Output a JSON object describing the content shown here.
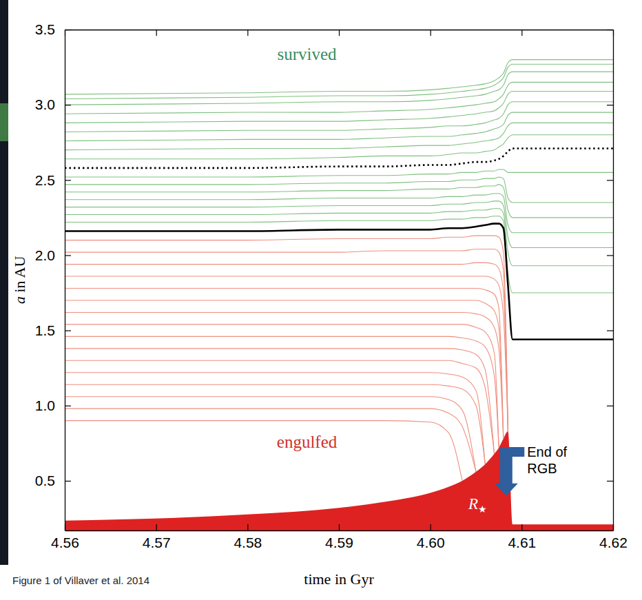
{
  "chart_data": {
    "type": "line",
    "x_label": "time in Gyr",
    "y_label": "a in AU",
    "caption": "Figure 1 of Villaver et al. 2014",
    "xlim": [
      4.56,
      4.62
    ],
    "ylim": [
      0.17,
      3.5
    ],
    "xticks": [
      4.56,
      4.57,
      4.58,
      4.59,
      {
        "value": 4.6,
        "label": "4.60"
      },
      4.61,
      4.62
    ],
    "yticks": [
      0.5,
      {
        "value": 1,
        "label": "1.0"
      },
      1.5,
      {
        "value": 2,
        "label": "2.0"
      },
      2.5,
      {
        "value": 3,
        "label": "3.0"
      },
      3.5
    ],
    "x": [
      4.56,
      4.58,
      4.59,
      4.595,
      4.6,
      4.602,
      4.6035,
      4.605,
      4.606,
      4.607,
      4.6075,
      4.608,
      4.6085,
      4.609,
      4.62
    ],
    "series": [
      {
        "type": "area",
        "color": "#de2222",
        "values": [
          0.235,
          0.276,
          0.32,
          0.36,
          0.42,
          0.46,
          0.5,
          0.56,
          0.61,
          0.68,
          0.72,
          0.78,
          0.83,
          0.21,
          0.21
        ]
      },
      {
        "color": "#ee8f7f",
        "values": [
          0.9,
          0.9,
          0.9,
          0.9,
          0.89,
          0.82,
          0.5,
          null,
          null,
          null,
          null,
          null,
          null,
          null,
          null
        ]
      },
      {
        "color": "#ee8f7f",
        "values": [
          0.98,
          0.98,
          0.98,
          0.98,
          0.98,
          0.95,
          0.86,
          0.56,
          null,
          null,
          null,
          null,
          null,
          null,
          null
        ]
      },
      {
        "color": "#ee8f7f",
        "values": [
          1.06,
          1.06,
          1.06,
          1.06,
          1.06,
          1.04,
          0.97,
          0.56,
          null,
          null,
          null,
          null,
          null,
          null,
          null
        ]
      },
      {
        "color": "#ee8f7f",
        "values": [
          1.14,
          1.14,
          1.14,
          1.14,
          1.14,
          1.13,
          1.11,
          1.0,
          0.61,
          null,
          null,
          null,
          null,
          null,
          null
        ]
      },
      {
        "color": "#ee8f7f",
        "values": [
          1.22,
          1.22,
          1.22,
          1.22,
          1.22,
          1.21,
          1.19,
          1.1,
          0.61,
          null,
          null,
          null,
          null,
          null,
          null
        ]
      },
      {
        "color": "#ee8f7f",
        "values": [
          1.3,
          1.3,
          1.3,
          1.3,
          1.3,
          1.3,
          1.28,
          1.25,
          1.12,
          0.68,
          null,
          null,
          null,
          null,
          null
        ]
      },
      {
        "color": "#ee8f7f",
        "values": [
          1.38,
          1.38,
          1.38,
          1.38,
          1.38,
          1.38,
          1.37,
          1.34,
          1.24,
          0.68,
          null,
          null,
          null,
          null,
          null
        ]
      },
      {
        "color": "#ee8f7f",
        "values": [
          1.46,
          1.46,
          1.46,
          1.46,
          1.46,
          1.46,
          1.45,
          1.43,
          1.39,
          1.2,
          0.72,
          null,
          null,
          null,
          null
        ]
      },
      {
        "color": "#ee8f7f",
        "values": [
          1.54,
          1.54,
          1.54,
          1.54,
          1.54,
          1.54,
          1.54,
          1.52,
          1.49,
          1.35,
          0.72,
          null,
          null,
          null,
          null
        ]
      },
      {
        "color": "#ee8f7f",
        "values": [
          1.62,
          1.62,
          1.62,
          1.62,
          1.62,
          1.62,
          1.62,
          1.61,
          1.59,
          1.52,
          1.38,
          0.78,
          null,
          null,
          null
        ]
      },
      {
        "color": "#ee8f7f",
        "values": [
          1.7,
          1.7,
          1.7,
          1.7,
          1.7,
          1.7,
          1.7,
          1.7,
          1.68,
          1.63,
          1.52,
          0.78,
          null,
          null,
          null
        ]
      },
      {
        "color": "#ee8f7f",
        "values": [
          1.78,
          1.78,
          1.78,
          1.78,
          1.78,
          1.78,
          1.78,
          1.78,
          1.77,
          1.74,
          1.65,
          0.78,
          null,
          null,
          null
        ]
      },
      {
        "color": "#ee8f7f",
        "values": [
          1.86,
          1.86,
          1.86,
          1.86,
          1.86,
          1.86,
          1.86,
          1.86,
          1.86,
          1.84,
          1.8,
          1.6,
          0.83,
          null,
          null
        ]
      },
      {
        "color": "#ee8f7f",
        "values": [
          1.94,
          1.94,
          1.94,
          1.94,
          1.94,
          1.94,
          1.94,
          1.95,
          1.95,
          1.94,
          1.91,
          1.76,
          0.83,
          null,
          null
        ]
      },
      {
        "color": "#ee8f7f",
        "values": [
          2.02,
          2.02,
          2.02,
          2.03,
          2.03,
          2.03,
          2.03,
          2.04,
          2.04,
          2.04,
          2.02,
          1.9,
          0.83,
          null,
          null
        ]
      },
      {
        "color": "#ee8f7f",
        "values": [
          2.1,
          2.1,
          2.11,
          2.11,
          2.11,
          2.12,
          2.12,
          2.13,
          2.13,
          2.13,
          2.12,
          2.02,
          0.83,
          null,
          null
        ]
      },
      {
        "color": "#80bf80",
        "values": [
          2.22,
          2.22,
          2.23,
          2.23,
          2.23,
          2.24,
          2.24,
          2.25,
          2.25,
          2.26,
          2.26,
          2.23,
          1.88,
          1.75,
          1.75
        ]
      },
      {
        "color": "#80bf80",
        "values": [
          2.27,
          2.27,
          2.28,
          2.28,
          2.28,
          2.29,
          2.29,
          2.3,
          2.3,
          2.31,
          2.31,
          2.28,
          2.02,
          1.93,
          1.93
        ]
      },
      {
        "color": "#80bf80",
        "values": [
          2.32,
          2.32,
          2.33,
          2.33,
          2.33,
          2.34,
          2.34,
          2.35,
          2.35,
          2.36,
          2.36,
          2.33,
          2.12,
          2.05,
          2.05
        ]
      },
      {
        "color": "#80bf80",
        "values": [
          2.37,
          2.37,
          2.38,
          2.38,
          2.38,
          2.39,
          2.39,
          2.4,
          2.4,
          2.41,
          2.41,
          2.39,
          2.2,
          2.15,
          2.15
        ]
      },
      {
        "color": "#80bf80",
        "values": [
          2.42,
          2.42,
          2.43,
          2.43,
          2.44,
          2.44,
          2.45,
          2.45,
          2.46,
          2.46,
          2.47,
          2.45,
          2.3,
          2.25,
          2.25
        ]
      },
      {
        "color": "#80bf80",
        "values": [
          2.47,
          2.47,
          2.48,
          2.48,
          2.49,
          2.49,
          2.5,
          2.5,
          2.51,
          2.51,
          2.52,
          2.51,
          2.38,
          2.35,
          2.35
        ]
      },
      {
        "color": "#80bf80",
        "values": [
          2.52,
          2.52,
          2.53,
          2.53,
          2.54,
          2.54,
          2.55,
          2.55,
          2.56,
          2.56,
          2.57,
          2.57,
          2.55,
          2.55,
          2.55
        ]
      },
      {
        "color": "#80bf80",
        "values": [
          2.64,
          2.64,
          2.65,
          2.66,
          2.66,
          2.67,
          2.68,
          2.68,
          2.69,
          2.7,
          2.72,
          2.74,
          2.78,
          2.8,
          2.8
        ]
      },
      {
        "color": "#80bf80",
        "values": [
          2.7,
          2.71,
          2.71,
          2.72,
          2.73,
          2.73,
          2.74,
          2.75,
          2.76,
          2.77,
          2.78,
          2.81,
          2.86,
          2.88,
          2.88
        ]
      },
      {
        "color": "#80bf80",
        "values": [
          2.76,
          2.77,
          2.77,
          2.78,
          2.79,
          2.79,
          2.8,
          2.81,
          2.82,
          2.84,
          2.85,
          2.87,
          2.93,
          2.95,
          2.95
        ]
      },
      {
        "color": "#80bf80",
        "values": [
          2.82,
          2.83,
          2.83,
          2.84,
          2.85,
          2.86,
          2.86,
          2.87,
          2.88,
          2.9,
          2.91,
          2.94,
          3.0,
          3.02,
          3.02
        ]
      },
      {
        "color": "#80bf80",
        "values": [
          2.88,
          2.89,
          2.89,
          2.9,
          2.91,
          2.92,
          2.93,
          2.94,
          2.95,
          2.96,
          2.98,
          3.01,
          3.07,
          3.09,
          3.09
        ]
      },
      {
        "color": "#80bf80",
        "values": [
          2.94,
          2.95,
          2.95,
          2.96,
          2.97,
          2.98,
          2.99,
          3.0,
          3.01,
          3.02,
          3.04,
          3.07,
          3.13,
          3.15,
          3.15
        ]
      },
      {
        "color": "#80bf80",
        "values": [
          3.0,
          3.01,
          3.02,
          3.02,
          3.03,
          3.04,
          3.05,
          3.06,
          3.07,
          3.09,
          3.1,
          3.13,
          3.2,
          3.22,
          3.22
        ]
      },
      {
        "color": "#80bf80",
        "values": [
          3.04,
          3.05,
          3.06,
          3.06,
          3.07,
          3.08,
          3.09,
          3.1,
          3.11,
          3.13,
          3.15,
          3.18,
          3.25,
          3.27,
          3.27
        ]
      },
      {
        "color": "#80bf80",
        "values": [
          3.07,
          3.08,
          3.09,
          3.09,
          3.1,
          3.11,
          3.12,
          3.13,
          3.14,
          3.16,
          3.18,
          3.21,
          3.28,
          3.3,
          3.3
        ]
      },
      {
        "color": "#000000",
        "line_style": "dotted",
        "values": [
          2.58,
          2.58,
          2.59,
          2.59,
          2.6,
          2.6,
          2.61,
          2.62,
          2.62,
          2.63,
          2.64,
          2.66,
          2.69,
          2.71,
          2.71
        ]
      },
      {
        "color": "#000000",
        "line_style": "solid",
        "values": [
          2.16,
          2.16,
          2.17,
          2.17,
          2.17,
          2.18,
          2.18,
          2.19,
          2.2,
          2.21,
          2.21,
          2.18,
          1.8,
          1.44,
          1.44
        ]
      }
    ],
    "annotations": [
      {
        "text": "survived",
        "x": 4.5865,
        "y": 3.3,
        "color": "#3a8c5c"
      },
      {
        "text": "engulfed",
        "x": 4.5865,
        "y": 0.72,
        "color": "#d0312d"
      },
      {
        "text": "R★",
        "x": 4.6052,
        "y": 0.31,
        "color": "#ffffff"
      },
      {
        "text": "End of RGB",
        "x": 4.6106,
        "y": 0.66,
        "color": "#000000",
        "arrow": [
          4.6083,
          0.4
        ]
      }
    ]
  }
}
